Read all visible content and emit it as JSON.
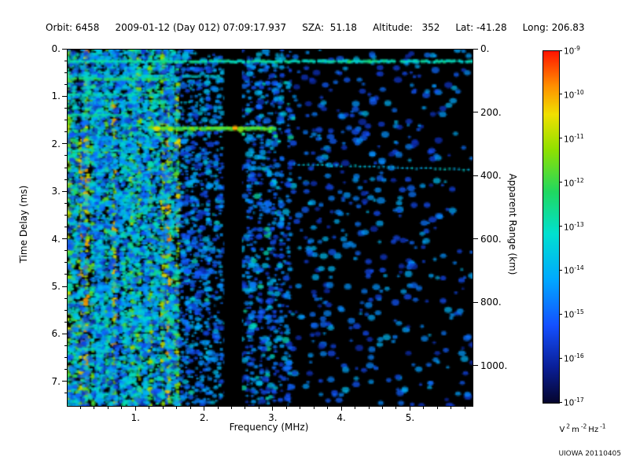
{
  "header": {
    "orbit": "Orbit: 6458",
    "datetime": "2009-01-12 (Day 012) 07:09:17.937",
    "sza": "SZA:  51.18",
    "altitude": "Altitude:   352",
    "lat": "Lat: -41.28",
    "long": "Long: 206.83"
  },
  "credit": "UIOWA 20110405",
  "chart_data": {
    "type": "heatmap",
    "description": "Radar sounder ionogram spectrogram: signal spectral density vs frequency and time delay",
    "xlabel": "Frequency (MHz)",
    "ylabel_left": "Time Delay (ms)",
    "ylabel_right": "Apparent Range (km)",
    "x_range_mhz": [
      0.0,
      5.9
    ],
    "x_major_ticks_mhz": [
      1,
      2,
      3,
      4,
      5
    ],
    "x_major_tick_labels": [
      "1.",
      "2.",
      "3.",
      "4.",
      "5."
    ],
    "x_minor_step_mhz": 0.2,
    "y_range_ms": [
      0.0,
      7.5
    ],
    "y_major_ticks_ms": [
      0,
      1,
      2,
      3,
      4,
      5,
      6,
      7
    ],
    "y_major_tick_labels": [
      "0.",
      "1.",
      "2.",
      "3.",
      "4.",
      "5.",
      "6.",
      "7."
    ],
    "y_minor_step_ms": 0.25,
    "right_axis_ticks_km": [
      0,
      200,
      400,
      600,
      800,
      1000
    ],
    "right_axis_tick_labels": [
      "0.",
      "200.",
      "400.",
      "600.",
      "800.",
      "1000."
    ],
    "km_per_ms": 150,
    "grid": false,
    "colorbar": {
      "tick_exponents": [
        -9,
        -10,
        -11,
        -12,
        -13,
        -14,
        -15,
        -16,
        -17
      ],
      "unit_parts": [
        [
          "V",
          "2"
        ],
        [
          "m",
          "-2"
        ],
        [
          "Hz",
          "-1"
        ]
      ]
    },
    "colormap_stops": [
      {
        "v": 0.0,
        "c": "#05052d"
      },
      {
        "v": 0.1,
        "c": "#0a1e96"
      },
      {
        "v": 0.22,
        "c": "#1450ff"
      },
      {
        "v": 0.35,
        "c": "#00a8ff"
      },
      {
        "v": 0.48,
        "c": "#00e0d0"
      },
      {
        "v": 0.6,
        "c": "#20d860"
      },
      {
        "v": 0.72,
        "c": "#90e000"
      },
      {
        "v": 0.82,
        "c": "#f0e000"
      },
      {
        "v": 0.9,
        "c": "#ff9000"
      },
      {
        "v": 1.0,
        "c": "#ff1400"
      }
    ],
    "spectrogram": {
      "noise_seed": 20110405,
      "background": "#000000",
      "low_band": {
        "f_min": 0.0,
        "f_max": 1.62,
        "stripes": 30,
        "fill_blobs": 2200
      },
      "faint_stripe_bands": [
        {
          "f_min": 1.62,
          "f_max": 2.26,
          "count": 9,
          "base": 0.3
        },
        {
          "f_min": 2.56,
          "f_max": 3.25,
          "count": 7,
          "base": 0.26
        }
      ],
      "mid_band": {
        "f_min": 1.62,
        "f_max": 3.3,
        "blobs": 700
      },
      "high_band": {
        "f_min": 3.3,
        "f_max": 5.9,
        "blobs": 620
      },
      "blackout_bands": [
        {
          "f_min": 2.28,
          "f_max": 2.54
        }
      ],
      "horizontal_lines": [
        {
          "t": 0.25,
          "f0": 0.0,
          "f1": 5.9,
          "v": 0.5,
          "r": 1.3,
          "a": 0.95,
          "step": 1.6
        },
        {
          "t": 0.56,
          "f0": 0.0,
          "f1": 2.2,
          "v": 0.45,
          "r": 1.1,
          "a": 0.8,
          "step": 2
        },
        {
          "t": 0.62,
          "f0": 0.0,
          "f1": 1.5,
          "v": 0.58,
          "r": 1.2,
          "a": 0.9,
          "step": 1.6
        },
        {
          "t": 0.95,
          "f0": 0.0,
          "f1": 1.4,
          "v": 0.5,
          "r": 1.1,
          "a": 0.85,
          "step": 2
        },
        {
          "t": 1.12,
          "f0": 0.0,
          "f1": 1.9,
          "v": 0.45,
          "r": 1.0,
          "a": 0.8,
          "step": 2.5
        },
        {
          "t": 1.38,
          "f0": 0.0,
          "f1": 0.9,
          "v": 0.52,
          "r": 1.1,
          "a": 0.85,
          "step": 2
        },
        {
          "t": 1.66,
          "f0": 1.26,
          "f1": 3.02,
          "v": 0.66,
          "r": 1.6,
          "a": 1.0,
          "step": 1.5
        },
        {
          "t": 2.12,
          "f0": 0.0,
          "f1": 0.8,
          "v": 0.5,
          "r": 1.1,
          "a": 0.8,
          "step": 2
        },
        {
          "t": 2.42,
          "t1": 2.53,
          "f0": 3.3,
          "f1": 5.9,
          "v": 0.42,
          "r": 0.9,
          "a": 0.85,
          "step": 3
        }
      ],
      "hotspots": [
        {
          "f": 1.3,
          "t": 1.66,
          "v": 0.8,
          "r": 2.2
        },
        {
          "f": 1.33,
          "t": 1.78,
          "v": 0.66,
          "r": 1.7
        },
        {
          "f": 1.36,
          "t": 1.88,
          "v": 0.55,
          "r": 1.4
        },
        {
          "f": 1.5,
          "t": 1.68,
          "v": 0.74,
          "r": 1.9
        },
        {
          "f": 2.44,
          "t": 1.65,
          "v": 0.88,
          "r": 1.9
        },
        {
          "f": 2.52,
          "t": 1.7,
          "v": 0.7,
          "r": 1.6
        },
        {
          "f": 2.56,
          "t": 1.78,
          "v": 0.55,
          "r": 1.4
        },
        {
          "f": 2.95,
          "t": 1.72,
          "v": 0.6,
          "r": 1.6
        },
        {
          "f": 3.03,
          "t": 1.82,
          "v": 0.55,
          "r": 1.5
        },
        {
          "f": 3.08,
          "t": 1.93,
          "v": 0.48,
          "r": 1.3
        },
        {
          "f": 4.1,
          "t": 0.25,
          "v": 0.6,
          "r": 1.4
        },
        {
          "f": 4.4,
          "t": 0.25,
          "v": 0.58,
          "r": 1.4
        }
      ]
    }
  }
}
